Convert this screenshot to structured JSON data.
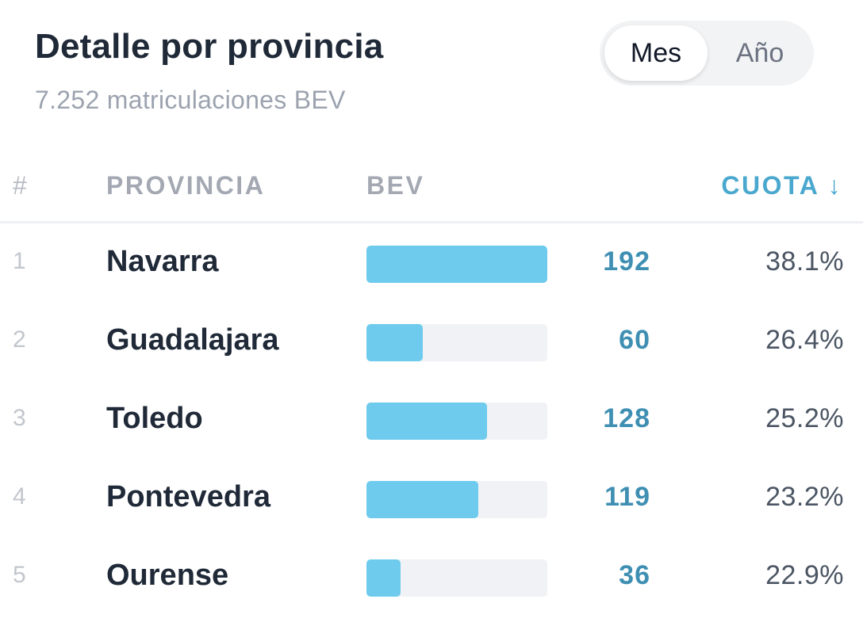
{
  "header": {
    "title": "Detalle por provincia",
    "subtitle": "7.252 matriculaciones BEV"
  },
  "period_toggle": {
    "options": [
      "Mes",
      "Año"
    ],
    "selected": "Mes"
  },
  "table": {
    "columns": {
      "rank": "#",
      "province": "PROVINCIA",
      "bev": "BEV",
      "share": "CUOTA ↓"
    },
    "bar_max": 192,
    "rows": [
      {
        "rank": "1",
        "province": "Navarra",
        "bev": 192,
        "share": "38.1%"
      },
      {
        "rank": "2",
        "province": "Guadalajara",
        "bev": 60,
        "share": "26.4%"
      },
      {
        "rank": "3",
        "province": "Toledo",
        "bev": 128,
        "share": "25.2%"
      },
      {
        "rank": "4",
        "province": "Pontevedra",
        "bev": 119,
        "share": "23.2%"
      },
      {
        "rank": "5",
        "province": "Ourense",
        "bev": 36,
        "share": "22.9%"
      }
    ]
  },
  "colors": {
    "accent": "#4aa8cf",
    "bar_fill": "#6ecbed",
    "bar_track": "#f1f2f5",
    "bev_value": "#3f8fb3"
  },
  "icons": {
    "sort": "arrow-down-icon"
  }
}
